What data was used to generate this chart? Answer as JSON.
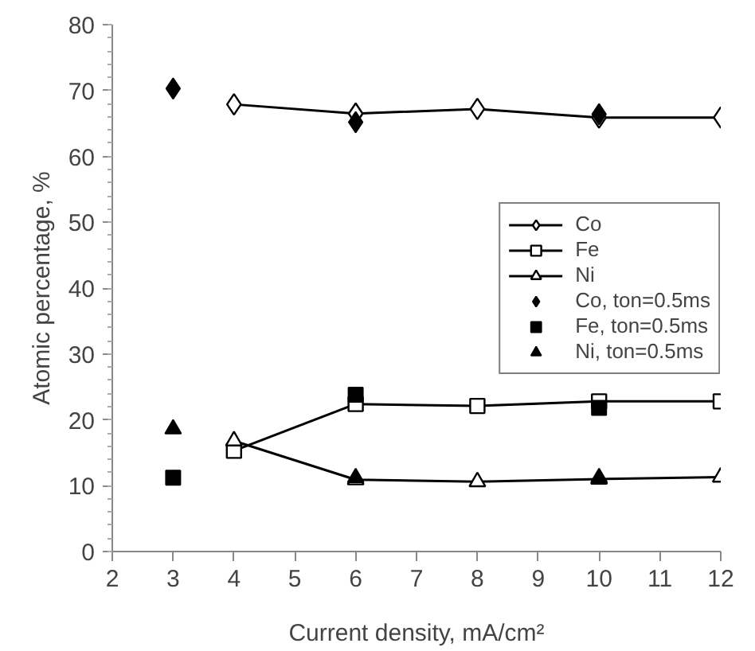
{
  "chart_data": {
    "type": "line",
    "xlabel": "Current density, mA/cm²",
    "ylabel": "Atomic percentage, %",
    "xlim": [
      2,
      12
    ],
    "xticks": [
      2,
      3,
      4,
      5,
      6,
      7,
      8,
      9,
      10,
      11,
      12
    ],
    "ylim": [
      0,
      80
    ],
    "yticks": [
      0,
      10,
      20,
      30,
      40,
      50,
      60,
      70,
      80
    ],
    "grid": false,
    "legend": "right",
    "series": [
      {
        "name": "Co",
        "marker": "diamond",
        "color": "#000000",
        "x": [
          4,
          6,
          8,
          10,
          12
        ],
        "values": [
          67.9,
          66.5,
          67.2,
          65.9,
          65.9
        ]
      },
      {
        "name": "Fe",
        "marker": "square",
        "color": "#000000",
        "x": [
          4,
          6,
          8,
          10,
          12
        ],
        "values": [
          15.3,
          22.4,
          22.1,
          22.8,
          22.8
        ]
      },
      {
        "name": "Ni",
        "marker": "triangle",
        "color": "#000000",
        "x": [
          4,
          6,
          8,
          10,
          12
        ],
        "values": [
          16.8,
          10.9,
          10.6,
          11.0,
          11.3
        ]
      },
      {
        "name": "Co, ton=0.5ms",
        "type": "scatter",
        "marker": "diamond",
        "color": "#000000",
        "x": [
          3,
          6,
          10
        ],
        "values": [
          70.3,
          65.2,
          66.4
        ]
      },
      {
        "name": "Fe, ton=0.5ms",
        "type": "scatter",
        "marker": "square",
        "color": "#000000",
        "x": [
          3,
          6,
          10
        ],
        "values": [
          11.2,
          23.8,
          21.8
        ]
      },
      {
        "name": "Ni, ton=0.5ms",
        "type": "scatter",
        "marker": "triangle",
        "color": "#000000",
        "x": [
          3,
          6,
          10
        ],
        "values": [
          18.6,
          11.2,
          11.2
        ]
      }
    ]
  }
}
